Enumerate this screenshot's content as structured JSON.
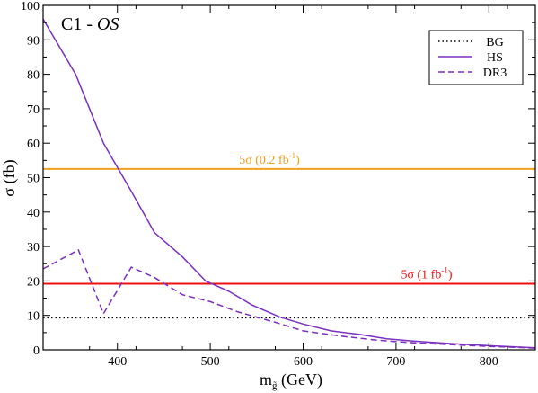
{
  "chart_data": {
    "type": "line",
    "title": "",
    "panel_label": {
      "prefix": "C1 - ",
      "italic": "OS"
    },
    "xlabel": {
      "main": "m",
      "sub": "g̃",
      "unit": " (GeV)"
    },
    "ylabel": {
      "symbol": "σ",
      "unit": " (fb)"
    },
    "xlim": [
      320,
      850
    ],
    "ylim": [
      0,
      100
    ],
    "x_ticks": [
      400,
      500,
      600,
      700,
      800
    ],
    "y_ticks": [
      0,
      10,
      20,
      30,
      40,
      50,
      60,
      70,
      80,
      90,
      100
    ],
    "grid": false,
    "legend_position": "top-right",
    "series": [
      {
        "name": "BG",
        "style": "dotted",
        "color": "#000000",
        "x": [
          320,
          850
        ],
        "y": [
          9.3,
          9.3
        ]
      },
      {
        "name": "HS",
        "style": "solid",
        "color": "#7b2fbe",
        "x": [
          320,
          355,
          385,
          415,
          440,
          470,
          495,
          520,
          545,
          575,
          600,
          630,
          660,
          690,
          720,
          760,
          800,
          850
        ],
        "y": [
          96,
          80,
          60,
          46,
          34,
          27,
          20,
          17,
          13,
          9.5,
          7.5,
          5.5,
          4.5,
          3.2,
          2.5,
          1.8,
          1.2,
          0.6
        ]
      },
      {
        "name": "DR3",
        "style": "dashed",
        "color": "#7b2fbe",
        "x": [
          320,
          358,
          385,
          415,
          440,
          470,
          500,
          530,
          570,
          600,
          640,
          680,
          720,
          760,
          800,
          850
        ],
        "y": [
          23.5,
          29,
          10.5,
          24,
          21,
          16,
          14,
          11,
          8,
          5.5,
          4,
          2.8,
          2,
          1.5,
          1,
          0.5
        ]
      }
    ],
    "threshold_lines": [
      {
        "value": 52.5,
        "color": "#f0a01e",
        "label_main": "5σ (0.2 fb",
        "label_sup": "-1",
        "label_tail": ")"
      },
      {
        "value": 19.2,
        "color": "#ee1111",
        "label_main": "5σ (1 fb",
        "label_sup": "-1",
        "label_tail": ")"
      }
    ]
  }
}
